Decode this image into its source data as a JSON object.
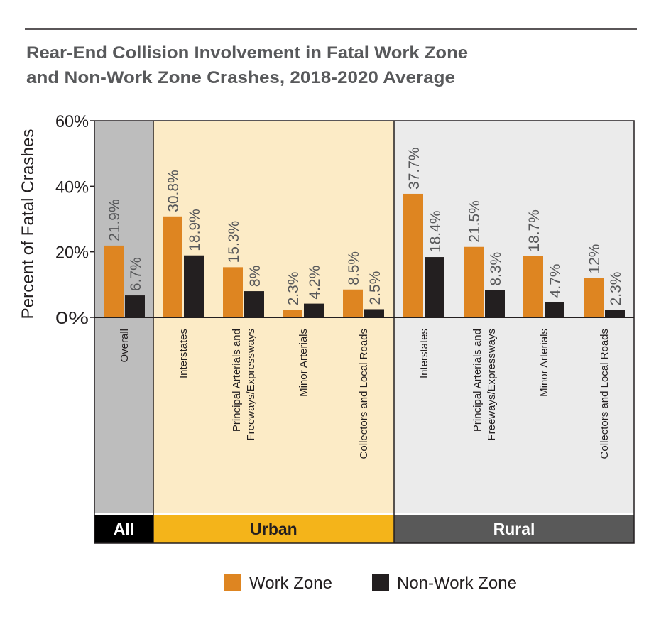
{
  "chart_data": {
    "type": "bar",
    "title_line1": "Rear-End Collision Involvement in Fatal Work Zone",
    "title_line2": "and Non-Work Zone Crashes, 2018-2020 Average",
    "ylabel": "Percent of Fatal Crashes",
    "xlabel": "",
    "ylim": [
      0,
      60
    ],
    "yticks": [
      "0%",
      "20%",
      "40%",
      "60%"
    ],
    "ytick_values": [
      0,
      20,
      40,
      60
    ],
    "groups": [
      {
        "name": "All",
        "color": "#bdbdbd",
        "band_color": "#000000"
      },
      {
        "name": "Urban",
        "color": "#fcebc6",
        "band_color": "#f4b41a"
      },
      {
        "name": "Rural",
        "color": "#ebebeb",
        "band_color": "#595959"
      }
    ],
    "categories": [
      {
        "group": 0,
        "label_lines": [
          "Overall"
        ]
      },
      {
        "group": 1,
        "label_lines": [
          "Interstates"
        ]
      },
      {
        "group": 1,
        "label_lines": [
          "Principal Arterials and",
          "Freeways/Expressways"
        ]
      },
      {
        "group": 1,
        "label_lines": [
          "Minor Arterials"
        ]
      },
      {
        "group": 1,
        "label_lines": [
          "Collectors and Local Roads"
        ]
      },
      {
        "group": 2,
        "label_lines": [
          "Interstates"
        ]
      },
      {
        "group": 2,
        "label_lines": [
          "Principal Arterials and",
          "Freeways/Expressways"
        ]
      },
      {
        "group": 2,
        "label_lines": [
          "Minor Arterials"
        ]
      },
      {
        "group": 2,
        "label_lines": [
          "Collectors and Local Roads"
        ]
      }
    ],
    "series": [
      {
        "name": "Work Zone",
        "color": "#de8521",
        "values": [
          21.9,
          30.8,
          15.3,
          2.3,
          8.5,
          37.7,
          21.5,
          18.7,
          12
        ],
        "labels": [
          "21.9%",
          "30.8%",
          "15.3%",
          "2.3%",
          "8.5%",
          "37.7%",
          "21.5%",
          "18.7%",
          "12%"
        ]
      },
      {
        "name": "Non-Work Zone",
        "color": "#231f20",
        "values": [
          6.7,
          18.9,
          8,
          4.2,
          2.5,
          18.4,
          8.3,
          4.7,
          2.3
        ],
        "labels": [
          "6.7%",
          "18.9%",
          "8%",
          "4.2%",
          "2.5%",
          "18.4%",
          "8.3%",
          "4.7%",
          "2.3%"
        ]
      }
    ],
    "legend_position": "bottom-center",
    "grid": false
  }
}
